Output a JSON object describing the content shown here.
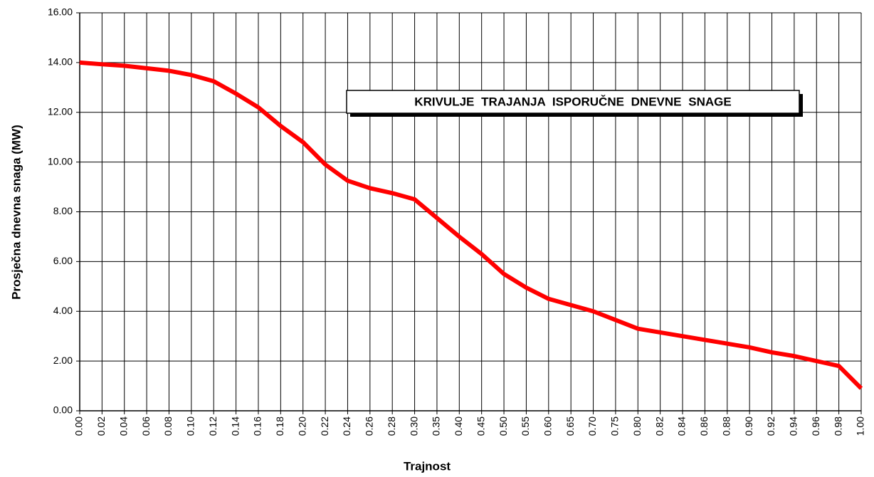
{
  "chart_data": {
    "type": "line",
    "title": "KRIVULJE TRAJANJA ISPORUČNE DNEVNE SNAGE",
    "x_label": "Trajnost",
    "y_label": "Prosječna dnevna snaga (MW)",
    "categories": [
      "0.00",
      "0.02",
      "0.04",
      "0.06",
      "0.08",
      "0.10",
      "0.12",
      "0.14",
      "0.16",
      "0.18",
      "0.20",
      "0.22",
      "0.24",
      "0.26",
      "0.28",
      "0.30",
      "0.35",
      "0.40",
      "0.45",
      "0.50",
      "0.55",
      "0.60",
      "0.65",
      "0.70",
      "0.75",
      "0.80",
      "0.82",
      "0.84",
      "0.86",
      "0.88",
      "0.90",
      "0.92",
      "0.94",
      "0.96",
      "0.98",
      "1.00"
    ],
    "series": [
      {
        "color": "#ff0000",
        "values": [
          14.0,
          13.93,
          13.87,
          13.77,
          13.67,
          13.5,
          13.25,
          12.75,
          12.2,
          11.45,
          10.8,
          9.9,
          9.25,
          8.95,
          8.75,
          8.5,
          7.75,
          7.0,
          6.3,
          5.5,
          4.95,
          4.5,
          4.25,
          4.0,
          3.65,
          3.3,
          3.15,
          3.0,
          2.85,
          2.7,
          2.55,
          2.35,
          2.2,
          2.0,
          1.8,
          0.9
        ]
      }
    ],
    "ylim": [
      0,
      16
    ],
    "yticks": [
      {
        "value": 0,
        "label": "0.00"
      },
      {
        "value": 2,
        "label": "2.00"
      },
      {
        "value": 4,
        "label": "4.00"
      },
      {
        "value": 6,
        "label": "6.00"
      },
      {
        "value": 8,
        "label": "8.00"
      },
      {
        "value": 10,
        "label": "10.00"
      },
      {
        "value": 12,
        "label": "12.00"
      },
      {
        "value": 14,
        "label": "14.00"
      },
      {
        "value": 16,
        "label": "16.00"
      }
    ],
    "grid": true
  }
}
